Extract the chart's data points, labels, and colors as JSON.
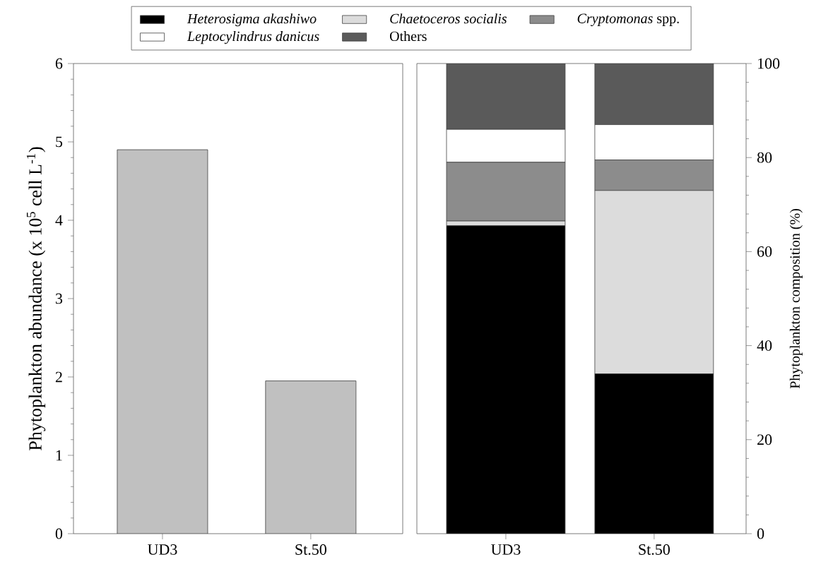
{
  "chart_data": [
    {
      "type": "bar",
      "ylabel": "Phytoplankton abundance (x 10$^{5}$ cell L$^{-1}$)",
      "categories": [
        "UD3",
        "St.50"
      ],
      "values": [
        4.9,
        1.95
      ],
      "color": "#c0c0c0",
      "ylim": [
        0,
        6
      ],
      "yticks": [
        0,
        1,
        2,
        3,
        4,
        5,
        6
      ]
    },
    {
      "type": "bar",
      "stacked": true,
      "ylabel": "Phytoplankton composition (%)",
      "categories": [
        "UD3",
        "St.50"
      ],
      "series": [
        {
          "name": "*Heterosigma akashiwo*",
          "color": "#000000",
          "values": [
            65.5,
            34
          ]
        },
        {
          "name": "*Chaetoceros socialis*",
          "color": "#dcdcdc",
          "values": [
            1,
            39
          ]
        },
        {
          "name": "*Cryptomonas* spp.",
          "color": "#8c8c8c",
          "values": [
            12.5,
            6.5
          ]
        },
        {
          "name": "*Leptocylindrus danicus*",
          "color": "#ffffff",
          "values": [
            7,
            7.5
          ]
        },
        {
          "name": "Others",
          "color": "#5a5a5a",
          "values": [
            14,
            13
          ]
        }
      ],
      "ylim": [
        0,
        100
      ],
      "yticks": [
        0,
        20,
        40,
        60,
        80,
        100
      ],
      "legend": "top"
    }
  ]
}
